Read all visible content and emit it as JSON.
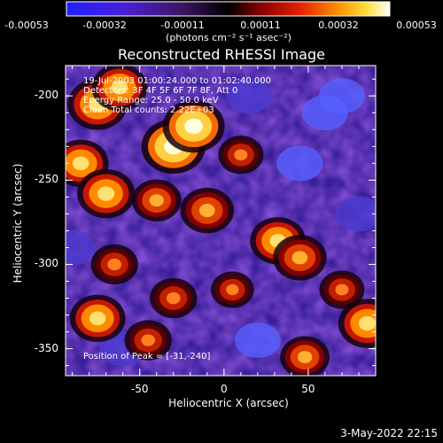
{
  "colorbar": {
    "ticks": [
      "-0.00053",
      "-0.00032",
      "-0.00011",
      "0.00011",
      "0.00032",
      "0.00053"
    ],
    "units": "(photons cm⁻² s⁻¹ asec⁻²)"
  },
  "annotations": {
    "time_range": "19-Jul-2003 01:00:24.000 to 01:02:40.000",
    "detectors": "Detectors: 3F 4F 5F 6F 7F 8F, Att 0",
    "energy": "Energy Range: 25.0 - 50.0 keV",
    "clean": "Clean     Total counts: 2.22E+03",
    "peak": "Position of Peak = [-31,-240]"
  },
  "footer": {
    "date": "3-May-2022 22:15"
  },
  "chart_data": {
    "type": "heatmap",
    "title": "Reconstructed RHESSI Image",
    "xlabel": "Heliocentric X (arcsec)",
    "ylabel": "Heliocentric Y (arcsec)",
    "xlim": [
      -94,
      90
    ],
    "ylim": [
      -366,
      -182
    ],
    "x_ticks": [
      -50,
      0,
      50
    ],
    "y_ticks": [
      -200,
      -250,
      -300,
      -350
    ],
    "colormap": "red temperature (blue-purple negative, red-yellow-white positive)",
    "value_range": [
      -0.00053,
      0.00053
    ],
    "peak_position": [
      -31,
      -240
    ],
    "grid": false,
    "bright_regions": [
      {
        "x": -30,
        "y": -230,
        "level": 0.95
      },
      {
        "x": -18,
        "y": -218,
        "level": 0.9
      },
      {
        "x": -75,
        "y": -205,
        "level": 0.85
      },
      {
        "x": -62,
        "y": -195,
        "level": 0.75
      },
      {
        "x": -85,
        "y": -240,
        "level": 0.75
      },
      {
        "x": -70,
        "y": -258,
        "level": 0.8
      },
      {
        "x": -40,
        "y": -262,
        "level": 0.6
      },
      {
        "x": -10,
        "y": -268,
        "level": 0.7
      },
      {
        "x": 32,
        "y": -286,
        "level": 0.75
      },
      {
        "x": 45,
        "y": -296,
        "level": 0.7
      },
      {
        "x": 10,
        "y": -235,
        "level": 0.5
      },
      {
        "x": -65,
        "y": -300,
        "level": 0.55
      },
      {
        "x": -30,
        "y": -320,
        "level": 0.55
      },
      {
        "x": -75,
        "y": -332,
        "level": 0.75
      },
      {
        "x": -45,
        "y": -345,
        "level": 0.55
      },
      {
        "x": 5,
        "y": -315,
        "level": 0.45
      },
      {
        "x": 48,
        "y": -355,
        "level": 0.6
      },
      {
        "x": 85,
        "y": -335,
        "level": 0.8
      },
      {
        "x": 70,
        "y": -315,
        "level": 0.5
      }
    ],
    "dark_regions": [
      {
        "x": 45,
        "y": -240,
        "level": -0.7
      },
      {
        "x": 60,
        "y": -210,
        "level": -0.75
      },
      {
        "x": 80,
        "y": -270,
        "level": -0.6
      },
      {
        "x": 20,
        "y": -345,
        "level": -0.7
      },
      {
        "x": -60,
        "y": -350,
        "level": -0.5
      },
      {
        "x": 70,
        "y": -200,
        "level": -0.65
      },
      {
        "x": -90,
        "y": -290,
        "level": -0.5
      },
      {
        "x": 15,
        "y": -200,
        "level": -0.45
      }
    ]
  }
}
